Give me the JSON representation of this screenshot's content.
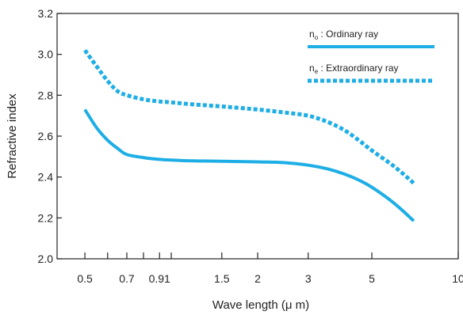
{
  "colors": {
    "series": "#1eaee6",
    "axis": "#222222"
  },
  "chart_data": {
    "type": "line",
    "xlabel": "Wave length (μ m)",
    "ylabel": "Refractive index",
    "x_scale": "log",
    "xlim": [
      0.4,
      10
    ],
    "ylim": [
      2.0,
      3.2
    ],
    "x_tick_labels": [
      {
        "value": 0.5,
        "label": "0.5"
      },
      {
        "value": 0.7,
        "label": "0.7"
      },
      {
        "value": 0.91,
        "label": "0.91"
      },
      {
        "value": 1.5,
        "label": "1.5"
      },
      {
        "value": 2,
        "label": "2"
      },
      {
        "value": 3,
        "label": "3"
      },
      {
        "value": 5,
        "label": "5"
      },
      {
        "value": 10,
        "label": "10"
      }
    ],
    "x_minor_ticks": [
      0.6,
      0.8,
      1.0
    ],
    "y_ticks": [
      {
        "value": 2.0,
        "label": "2.0"
      },
      {
        "value": 2.2,
        "label": "2.2"
      },
      {
        "value": 2.4,
        "label": "2.4"
      },
      {
        "value": 2.6,
        "label": "2.6"
      },
      {
        "value": 2.8,
        "label": "2.8"
      },
      {
        "value": 3.0,
        "label": "3.0"
      },
      {
        "value": 3.2,
        "label": "3.2"
      }
    ],
    "legend_position": "top-right",
    "series": [
      {
        "name": "Ordinary ray",
        "symbol": "n",
        "subscript": "o",
        "style": "solid",
        "x": [
          0.5,
          0.55,
          0.6,
          0.65,
          0.7,
          0.8,
          0.9,
          1.0,
          1.2,
          1.5,
          2.0,
          2.5,
          3.0,
          3.5,
          4.0,
          4.5,
          5.0,
          6.0,
          7.0
        ],
        "y": [
          2.73,
          2.64,
          2.58,
          2.54,
          2.51,
          2.495,
          2.487,
          2.483,
          2.479,
          2.477,
          2.474,
          2.47,
          2.458,
          2.44,
          2.415,
          2.385,
          2.35,
          2.27,
          2.185
        ]
      },
      {
        "name": "Extraordinary ray",
        "symbol": "n",
        "subscript": "e",
        "style": "dotted",
        "x": [
          0.5,
          0.55,
          0.6,
          0.65,
          0.7,
          0.8,
          0.9,
          1.0,
          1.2,
          1.5,
          2.0,
          2.5,
          3.0,
          3.5,
          4.0,
          4.5,
          5.0,
          6.0,
          7.0
        ],
        "y": [
          3.02,
          2.94,
          2.87,
          2.82,
          2.8,
          2.78,
          2.77,
          2.765,
          2.755,
          2.745,
          2.73,
          2.715,
          2.7,
          2.67,
          2.63,
          2.58,
          2.53,
          2.45,
          2.37
        ]
      }
    ]
  }
}
